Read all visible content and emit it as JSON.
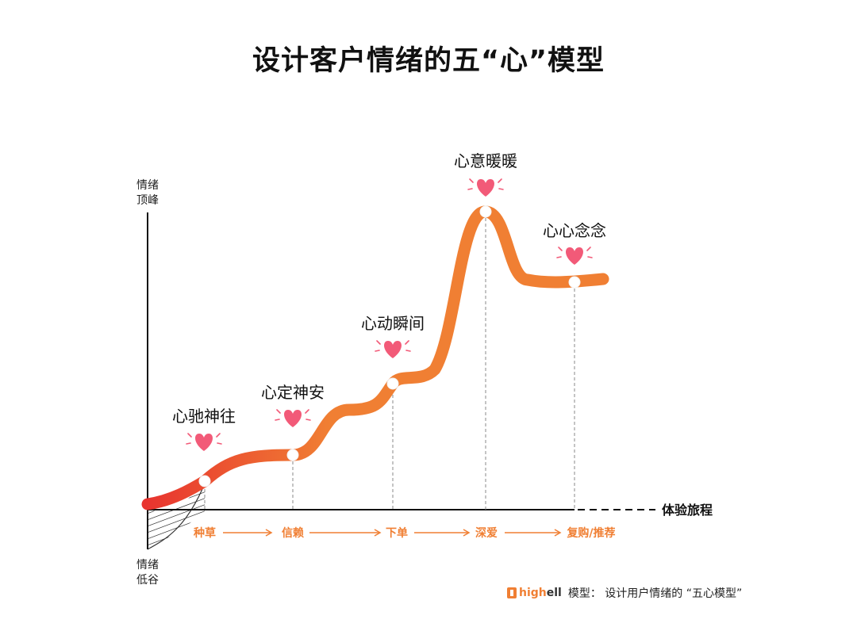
{
  "title": "设计客户情绪的五“心”模型",
  "y_axis": {
    "top_label": [
      "情绪",
      "顶峰"
    ],
    "bottom_label": [
      "情绪",
      "低谷"
    ]
  },
  "x_axis": {
    "label": "体验旅程"
  },
  "stages": [
    {
      "label": "心驰神往",
      "icon": "heart-icon"
    },
    {
      "label": "心定神安",
      "icon": "heart-icon"
    },
    {
      "label": "心动瞬间",
      "icon": "heart-icon"
    },
    {
      "label": "心意暖暖",
      "icon": "heart-icon"
    },
    {
      "label": "心心念念",
      "icon": "heart-icon"
    }
  ],
  "journey_steps": [
    "种草",
    "信赖",
    "下单",
    "深爱",
    "复购/推荐"
  ],
  "footer": {
    "brand": "high",
    "brand_suffix": "ell",
    "text": "模型： 设计用户情绪的 “五心模型”"
  },
  "colors": {
    "curve_start": "#e8342f",
    "curve_end": "#f07f33",
    "heart": "#f25a78",
    "step_text": "#f07f33"
  }
}
